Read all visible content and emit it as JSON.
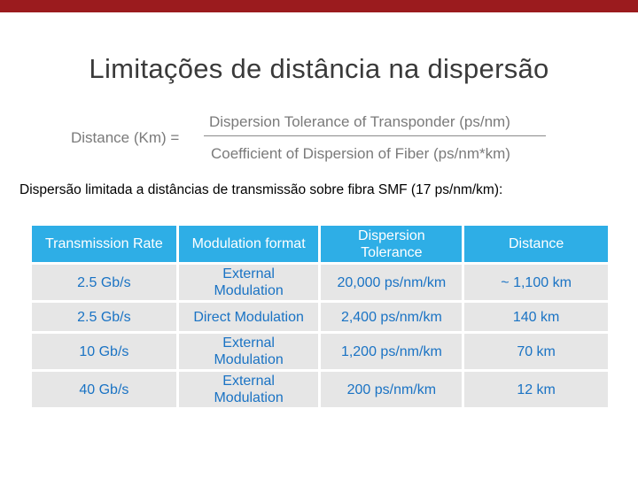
{
  "slide": {
    "title": "Limitações de distância na dispersão",
    "formula": {
      "lhs": "Distance (Km) =",
      "numerator": "Dispersion Tolerance of Transponder (ps/nm)",
      "denominator": "Coefficient of Dispersion of Fiber (ps/nm*km)"
    },
    "subtitle": "Dispersão limitada a distâncias de transmissão sobre fibra SMF (17 ps/nm/km):",
    "colors": {
      "top_bar": "#9b1b1e",
      "header": "#2eaee6",
      "cell_bg": "#e6e6e6",
      "cell_text": "#1a73c4"
    }
  },
  "table": {
    "headers": [
      "Transmission Rate",
      "Modulation format",
      "Dispersion\nTolerance",
      "Distance"
    ],
    "rows": [
      [
        "2.5 Gb/s",
        "External\nModulation",
        "20,000 ps/nm/km",
        "~ 1,100 km"
      ],
      [
        "2.5 Gb/s",
        "Direct Modulation",
        "2,400 ps/nm/km",
        "140 km"
      ],
      [
        "10 Gb/s",
        "External\nModulation",
        "1,200 ps/nm/km",
        "70 km"
      ],
      [
        "40 Gb/s",
        "External\nModulation",
        "200 ps/nm/km",
        "12 km"
      ]
    ]
  }
}
